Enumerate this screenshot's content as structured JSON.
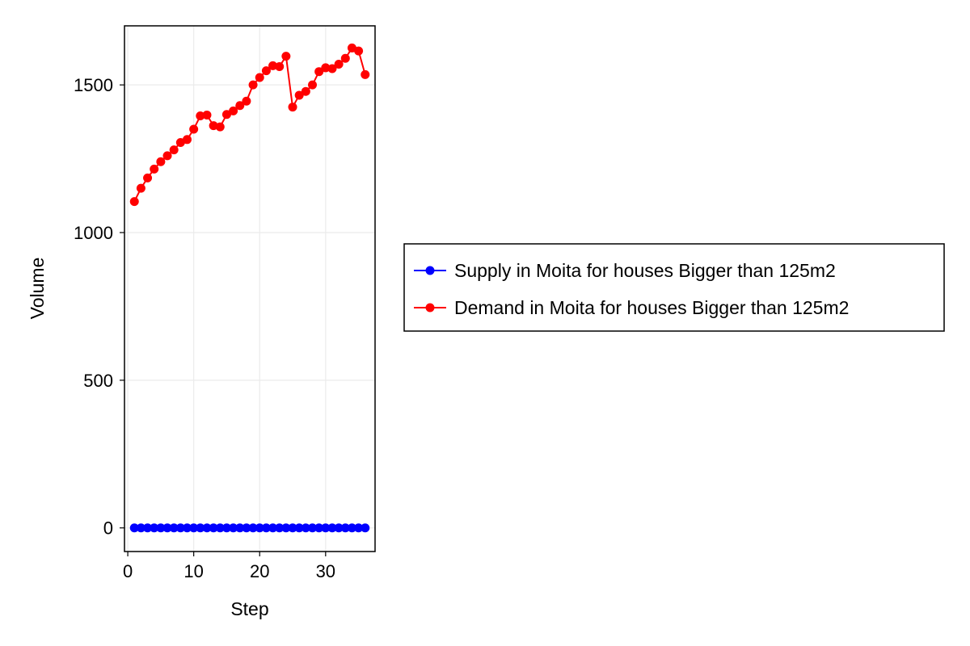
{
  "chart_data": {
    "type": "line",
    "xlabel": "Step",
    "ylabel": "Volume",
    "xlim": [
      -0.5,
      37.5
    ],
    "ylim": [
      -80,
      1700
    ],
    "xticks": [
      0,
      10,
      20,
      30
    ],
    "yticks": [
      0,
      500,
      1000,
      1500
    ],
    "grid": true,
    "legend_position": "right",
    "x": [
      1,
      2,
      3,
      4,
      5,
      6,
      7,
      8,
      9,
      10,
      11,
      12,
      13,
      14,
      15,
      16,
      17,
      18,
      19,
      20,
      21,
      22,
      23,
      24,
      25,
      26,
      27,
      28,
      29,
      30,
      31,
      32,
      33,
      34,
      35,
      36
    ],
    "series": [
      {
        "name": "Supply in Moita for houses Bigger than 125m2",
        "color": "#0000ff",
        "values": [
          0,
          0,
          0,
          0,
          0,
          0,
          0,
          0,
          0,
          0,
          0,
          0,
          0,
          0,
          0,
          0,
          0,
          0,
          0,
          0,
          0,
          0,
          0,
          0,
          0,
          0,
          0,
          0,
          0,
          0,
          0,
          0,
          0,
          0,
          0,
          0
        ]
      },
      {
        "name": "Demand in Moita for houses Bigger than 125m2",
        "color": "#ff0000",
        "values": [
          1105,
          1150,
          1185,
          1215,
          1240,
          1260,
          1280,
          1305,
          1315,
          1350,
          1395,
          1398,
          1362,
          1358,
          1400,
          1412,
          1430,
          1445,
          1500,
          1525,
          1548,
          1565,
          1562,
          1597,
          1425,
          1465,
          1478,
          1500,
          1545,
          1558,
          1555,
          1570,
          1590,
          1625,
          1615,
          1535
        ]
      }
    ]
  }
}
